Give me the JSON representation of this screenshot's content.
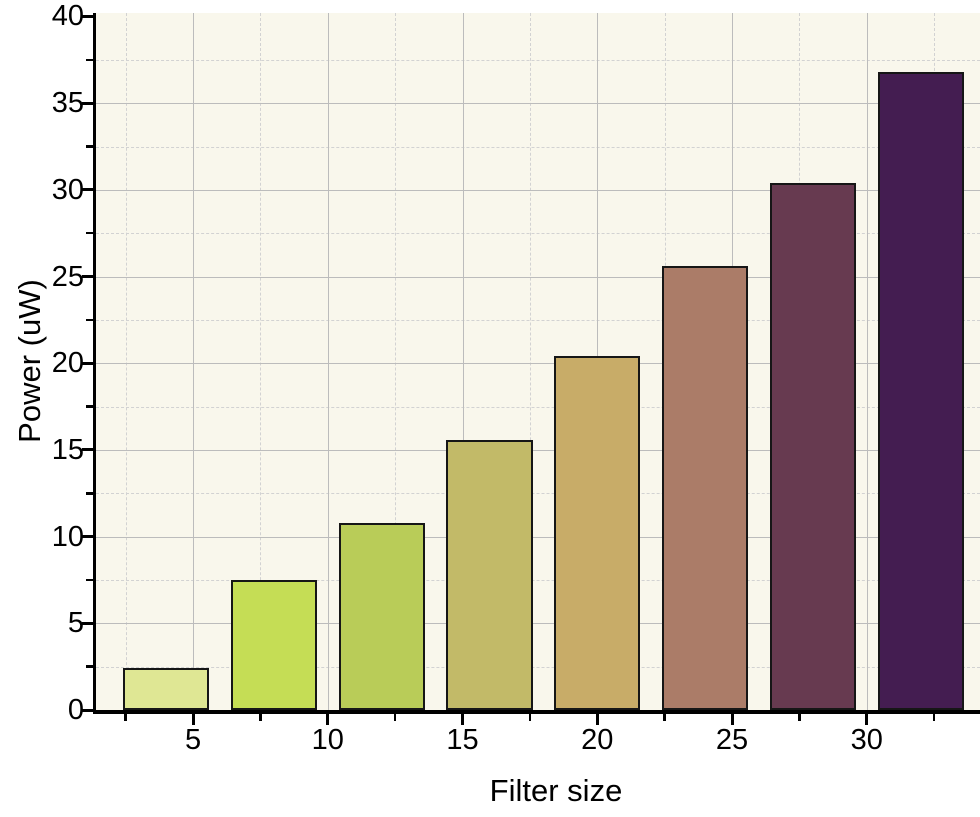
{
  "figure": {
    "background": "#ffffff"
  },
  "chart_data": {
    "type": "bar",
    "title": "",
    "xlabel": "Filter size",
    "ylabel": "Power (uW)",
    "categories": [
      4,
      8,
      12,
      16,
      20,
      24,
      28,
      32
    ],
    "values": [
      2.4,
      7.5,
      10.8,
      15.6,
      20.4,
      25.6,
      30.4,
      36.8
    ],
    "bar_colors": [
      "#dfe794",
      "#c5dd55",
      "#b9cc58",
      "#c2ba68",
      "#c8ac68",
      "#ab7c68",
      "#673a50",
      "#441d51"
    ],
    "bar_border_color": "#161616",
    "bar_width_units": 3.2,
    "xlim": [
      1.4,
      34.2
    ],
    "ylim": [
      0,
      40.2
    ],
    "x_major_ticks": [
      5,
      10,
      15,
      20,
      25,
      30
    ],
    "x_minor_ticks": [
      2.5,
      7.5,
      12.5,
      17.5,
      22.5,
      27.5,
      32.5
    ],
    "y_major_ticks": [
      0,
      5,
      10,
      15,
      20,
      25,
      30,
      35,
      40
    ],
    "y_minor_ticks": [
      2.5,
      7.5,
      12.5,
      17.5,
      22.5,
      27.5,
      32.5,
      37.5
    ],
    "x_grid_major": [
      5,
      10,
      15,
      20,
      25,
      30
    ],
    "x_grid_minor": [
      2.5,
      7.5,
      12.5,
      17.5,
      22.5,
      27.5,
      32.5
    ],
    "y_grid_major": [
      5,
      10,
      15,
      20,
      25,
      30,
      35
    ],
    "y_grid_minor": [
      2.5,
      7.5,
      12.5,
      17.5,
      22.5,
      27.5,
      32.5,
      37.5
    ],
    "grid": {
      "major_color": "#bcbcbc",
      "minor_color": "#d2d2d2",
      "minor_style": "dashed",
      "on": true
    },
    "plot_bg": "#f9f7ec",
    "axis_color": "#000000",
    "legend": null
  }
}
